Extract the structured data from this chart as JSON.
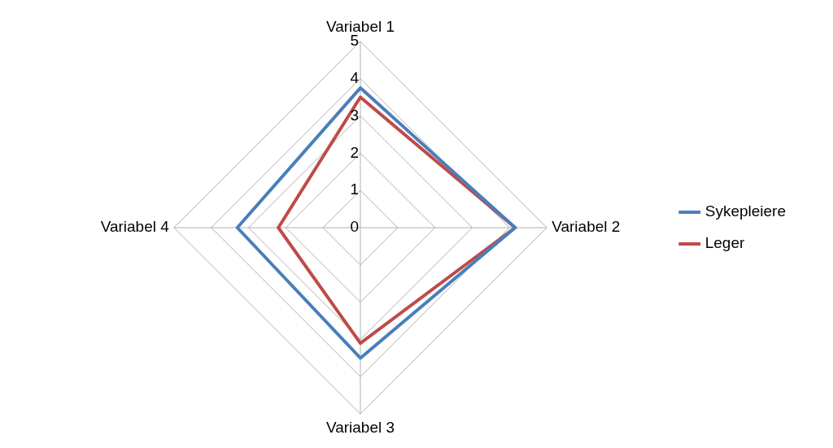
{
  "chart_data": {
    "type": "radar",
    "categories": [
      "Variabel 1",
      "Variabel 2",
      "Variabel 3",
      "Variabel 4"
    ],
    "series": [
      {
        "name": "Sykepleiere",
        "color": "#4a7ebb",
        "values": [
          3.75,
          4.15,
          3.5,
          3.3
        ]
      },
      {
        "name": "Leger",
        "color": "#be4b48",
        "values": [
          3.5,
          4.15,
          3.1,
          2.2
        ]
      }
    ],
    "ylim": [
      0,
      5
    ],
    "yticks": [
      0,
      1,
      2,
      3,
      4,
      5
    ],
    "grid": true,
    "legend": "right",
    "marker": "none"
  }
}
